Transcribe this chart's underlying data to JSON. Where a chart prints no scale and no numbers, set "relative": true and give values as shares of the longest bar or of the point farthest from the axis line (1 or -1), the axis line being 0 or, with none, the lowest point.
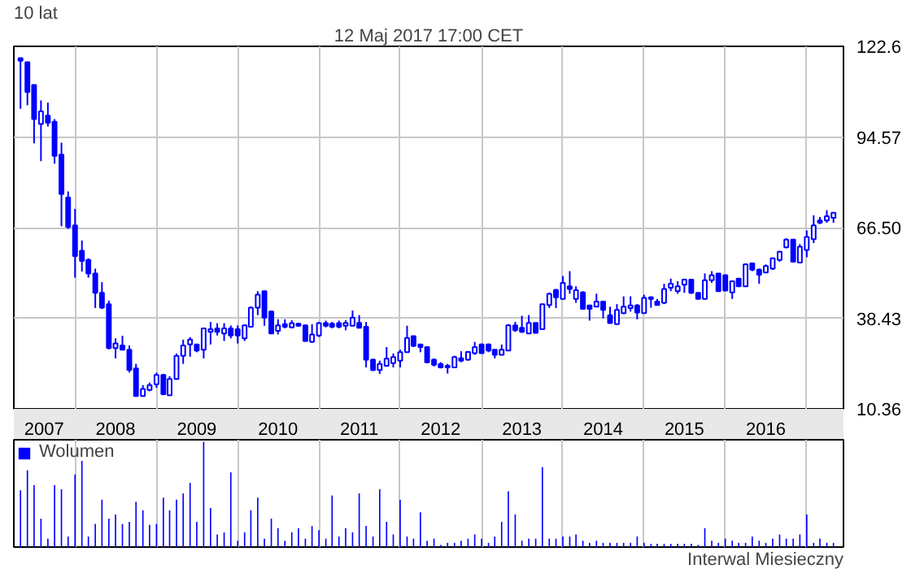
{
  "chart_data": [
    {
      "type": "candlestick",
      "title": "10 lat",
      "subtitle": "12 Maj 2017 17:00 CET",
      "color": "#0000ff",
      "x": [
        "2007-05",
        "2007-06",
        "2007-07",
        "2007-08",
        "2007-09",
        "2007-10",
        "2007-11",
        "2007-12",
        "2008-01",
        "2008-02",
        "2008-03",
        "2008-04",
        "2008-05",
        "2008-06",
        "2008-07",
        "2008-08",
        "2008-09",
        "2008-10",
        "2008-11",
        "2008-12",
        "2009-01",
        "2009-02",
        "2009-03",
        "2009-04",
        "2009-05",
        "2009-06",
        "2009-07",
        "2009-08",
        "2009-09",
        "2009-10",
        "2009-11",
        "2009-12",
        "2010-01",
        "2010-02",
        "2010-03",
        "2010-04",
        "2010-05",
        "2010-06",
        "2010-07",
        "2010-08",
        "2010-09",
        "2010-10",
        "2010-11",
        "2010-12",
        "2011-01",
        "2011-02",
        "2011-03",
        "2011-04",
        "2011-05",
        "2011-06",
        "2011-07",
        "2011-08",
        "2011-09",
        "2011-10",
        "2011-11",
        "2011-12",
        "2012-01",
        "2012-02",
        "2012-03",
        "2012-04",
        "2012-05",
        "2012-06",
        "2012-07",
        "2012-08",
        "2012-09",
        "2012-10",
        "2012-11",
        "2012-12",
        "2013-01",
        "2013-02",
        "2013-03",
        "2013-04",
        "2013-05",
        "2013-06",
        "2013-07",
        "2013-08",
        "2013-09",
        "2013-10",
        "2013-11",
        "2013-12",
        "2014-01",
        "2014-02",
        "2014-03",
        "2014-04",
        "2014-05",
        "2014-06",
        "2014-07",
        "2014-08",
        "2014-09",
        "2014-10",
        "2014-11",
        "2014-12",
        "2015-01",
        "2015-02",
        "2015-03",
        "2015-04",
        "2015-05",
        "2015-06",
        "2015-07",
        "2015-08",
        "2015-09",
        "2015-10",
        "2015-11",
        "2015-12",
        "2016-01",
        "2016-02",
        "2016-03",
        "2016-04",
        "2016-05",
        "2016-06",
        "2016-07",
        "2016-08",
        "2016-09",
        "2016-10",
        "2016-11",
        "2016-12",
        "2017-01",
        "2017-02",
        "2017-03",
        "2017-04",
        "2017-05"
      ],
      "ohlc": [
        [
          119.0,
          119.0,
          103.3,
          118.2
        ],
        [
          117.7,
          117.7,
          104.4,
          108.5
        ],
        [
          110.7,
          110.7,
          92.6,
          100.1
        ],
        [
          98.6,
          105.9,
          87.1,
          102.5
        ],
        [
          101.2,
          105.2,
          97.8,
          99.0
        ],
        [
          99.3,
          100.1,
          86.3,
          88.7
        ],
        [
          89.1,
          92.8,
          66.9,
          76.9
        ],
        [
          75.8,
          77.7,
          66.1,
          66.7
        ],
        [
          67.2,
          72.3,
          51.0,
          57.7
        ],
        [
          59.3,
          62.5,
          52.9,
          56.2
        ],
        [
          56.5,
          57.0,
          51.0,
          52.3
        ],
        [
          52.3,
          53.8,
          41.6,
          46.3
        ],
        [
          46.3,
          49.6,
          41.3,
          41.7
        ],
        [
          42.8,
          43.9,
          28.8,
          29.2
        ],
        [
          29.2,
          32.2,
          26.0,
          30.6
        ],
        [
          30.0,
          33.0,
          28.5,
          28.7
        ],
        [
          28.7,
          30.0,
          21.6,
          22.4
        ],
        [
          22.9,
          24.3,
          14.1,
          14.3
        ],
        [
          14.3,
          17.7,
          14.1,
          16.5
        ],
        [
          16.2,
          18.5,
          15.8,
          17.7
        ],
        [
          18.0,
          21.6,
          16.9,
          20.9
        ],
        [
          20.9,
          21.2,
          14.6,
          14.9
        ],
        [
          14.6,
          20.5,
          14.4,
          19.6
        ],
        [
          19.6,
          27.5,
          19.4,
          26.8
        ],
        [
          26.8,
          31.8,
          24.3,
          30.0
        ],
        [
          30.3,
          32.6,
          26.5,
          31.8
        ],
        [
          30.3,
          30.5,
          27.9,
          28.4
        ],
        [
          28.7,
          35.5,
          26.0,
          35.3
        ],
        [
          34.2,
          37.3,
          30.3,
          35.0
        ],
        [
          35.3,
          36.9,
          33.1,
          34.2
        ],
        [
          33.7,
          36.9,
          31.4,
          35.3
        ],
        [
          35.3,
          36.2,
          32.2,
          33.1
        ],
        [
          35.0,
          36.2,
          30.6,
          33.1
        ],
        [
          32.2,
          36.4,
          31.4,
          36.2
        ],
        [
          35.8,
          42.0,
          35.6,
          41.7
        ],
        [
          41.7,
          46.8,
          39.4,
          45.7
        ],
        [
          46.8,
          47.0,
          36.1,
          38.6
        ],
        [
          40.5,
          40.8,
          33.5,
          33.7
        ],
        [
          34.5,
          38.1,
          33.4,
          36.2
        ],
        [
          36.6,
          38.1,
          35.3,
          35.8
        ],
        [
          35.6,
          37.8,
          35.3,
          36.9
        ],
        [
          36.7,
          37.0,
          35.8,
          36.1
        ],
        [
          36.2,
          36.4,
          31.2,
          31.4
        ],
        [
          31.1,
          36.6,
          30.8,
          33.4
        ],
        [
          33.1,
          37.3,
          32.6,
          36.9
        ],
        [
          36.9,
          37.7,
          35.6,
          36.1
        ],
        [
          36.7,
          37.3,
          35.3,
          35.8
        ],
        [
          36.9,
          37.7,
          35.3,
          35.8
        ],
        [
          36.1,
          37.8,
          34.7,
          37.0
        ],
        [
          36.1,
          40.8,
          36.1,
          38.6
        ],
        [
          37.0,
          39.4,
          35.5,
          35.5
        ],
        [
          35.8,
          37.3,
          23.2,
          25.6
        ],
        [
          25.6,
          25.9,
          22.1,
          22.4
        ],
        [
          22.4,
          25.3,
          21.2,
          24.3
        ],
        [
          23.7,
          29.5,
          23.7,
          25.9
        ],
        [
          24.5,
          27.5,
          23.2,
          26.4
        ],
        [
          25.3,
          28.7,
          23.2,
          27.9
        ],
        [
          27.9,
          36.1,
          27.9,
          32.3
        ],
        [
          32.9,
          32.9,
          29.5,
          29.9
        ],
        [
          30.3,
          30.3,
          27.9,
          29.5
        ],
        [
          29.5,
          29.5,
          24.5,
          24.8
        ],
        [
          25.6,
          26.0,
          23.5,
          24.0
        ],
        [
          24.3,
          24.8,
          22.9,
          23.2
        ],
        [
          23.2,
          24.3,
          21.3,
          23.7
        ],
        [
          23.2,
          26.8,
          23.2,
          26.4
        ],
        [
          26.0,
          28.2,
          24.8,
          25.3
        ],
        [
          25.6,
          28.2,
          25.3,
          28.0
        ],
        [
          27.6,
          31.1,
          27.1,
          29.5
        ],
        [
          30.3,
          30.6,
          27.5,
          27.6
        ],
        [
          30.3,
          30.6,
          27.9,
          28.4
        ],
        [
          28.7,
          28.7,
          26.0,
          27.1
        ],
        [
          27.1,
          30.3,
          27.1,
          28.7
        ],
        [
          28.4,
          36.6,
          28.4,
          36.2
        ],
        [
          36.2,
          37.3,
          34.2,
          34.7
        ],
        [
          35.5,
          39.2,
          33.9,
          34.2
        ],
        [
          33.7,
          39.4,
          33.7,
          37.0
        ],
        [
          37.0,
          37.0,
          33.7,
          33.9
        ],
        [
          35.0,
          42.8,
          35.0,
          42.8
        ],
        [
          42.5,
          46.4,
          41.6,
          46.0
        ],
        [
          47.2,
          47.5,
          41.6,
          44.9
        ],
        [
          44.4,
          51.5,
          44.4,
          49.4
        ],
        [
          48.3,
          53.0,
          46.0,
          47.5
        ],
        [
          44.4,
          48.3,
          43.2,
          47.1
        ],
        [
          46.4,
          46.8,
          41.3,
          41.3
        ],
        [
          42.4,
          42.4,
          37.7,
          41.3
        ],
        [
          42.0,
          46.0,
          42.0,
          43.6
        ],
        [
          43.6,
          43.6,
          38.4,
          41.0
        ],
        [
          39.4,
          42.0,
          36.9,
          36.9
        ],
        [
          36.6,
          42.8,
          36.6,
          41.0
        ],
        [
          40.0,
          45.2,
          39.7,
          42.0
        ],
        [
          41.6,
          45.2,
          40.5,
          42.4
        ],
        [
          42.4,
          42.8,
          38.1,
          40.2
        ],
        [
          40.0,
          45.7,
          40.0,
          44.7
        ],
        [
          44.9,
          45.2,
          41.7,
          44.4
        ],
        [
          43.6,
          44.4,
          42.5,
          42.5
        ],
        [
          43.2,
          49.1,
          42.8,
          47.5
        ],
        [
          47.9,
          50.7,
          46.8,
          49.1
        ],
        [
          46.8,
          49.9,
          46.0,
          48.3
        ],
        [
          48.8,
          50.7,
          46.3,
          50.4
        ],
        [
          50.4,
          50.4,
          46.0,
          46.3
        ],
        [
          46.3,
          46.3,
          44.4,
          44.4
        ],
        [
          44.4,
          52.3,
          44.4,
          50.2
        ],
        [
          50.2,
          53.0,
          49.4,
          51.8
        ],
        [
          52.3,
          52.3,
          46.8,
          46.8
        ],
        [
          51.8,
          51.8,
          46.8,
          47.0
        ],
        [
          46.4,
          49.9,
          44.4,
          49.9
        ],
        [
          50.7,
          50.7,
          48.3,
          48.3
        ],
        [
          48.3,
          55.4,
          48.3,
          55.1
        ],
        [
          55.4,
          55.7,
          53.0,
          53.5
        ],
        [
          53.5,
          53.8,
          49.1,
          51.9
        ],
        [
          52.6,
          55.1,
          52.6,
          54.6
        ],
        [
          53.8,
          57.0,
          53.4,
          57.0
        ],
        [
          56.5,
          59.3,
          55.9,
          59.0
        ],
        [
          60.4,
          63.2,
          60.1,
          62.8
        ],
        [
          62.8,
          62.8,
          55.9,
          55.9
        ],
        [
          55.7,
          61.4,
          55.7,
          60.6
        ],
        [
          59.6,
          65.6,
          57.3,
          63.6
        ],
        [
          62.9,
          70.3,
          61.7,
          67.2
        ],
        [
          68.7,
          69.8,
          67.6,
          68.0
        ],
        [
          68.7,
          71.9,
          68.0,
          70.0
        ],
        [
          69.5,
          71.1,
          68.0,
          71.1
        ]
      ],
      "xlim": [
        "2007-04-01",
        "2017-06-15"
      ],
      "xticks": [
        {
          "value": "2007-08-15",
          "label": "2007"
        },
        {
          "value": "2008-01-01",
          "label": null
        },
        {
          "value": "2008-07-01",
          "label": "2008"
        },
        {
          "value": "2009-01-01",
          "label": null
        },
        {
          "value": "2009-07-01",
          "label": "2009"
        },
        {
          "value": "2010-01-01",
          "label": null
        },
        {
          "value": "2010-07-01",
          "label": "2010"
        },
        {
          "value": "2011-01-01",
          "label": null
        },
        {
          "value": "2011-07-01",
          "label": "2011"
        },
        {
          "value": "2012-01-01",
          "label": null
        },
        {
          "value": "2012-07-01",
          "label": "2012"
        },
        {
          "value": "2013-01-01",
          "label": null
        },
        {
          "value": "2013-07-01",
          "label": "2013"
        },
        {
          "value": "2014-01-01",
          "label": null
        },
        {
          "value": "2014-07-01",
          "label": "2014"
        },
        {
          "value": "2015-01-01",
          "label": null
        },
        {
          "value": "2015-07-01",
          "label": "2015"
        },
        {
          "value": "2016-01-01",
          "label": null
        },
        {
          "value": "2016-07-01",
          "label": "2016"
        },
        {
          "value": "2017-01-01",
          "label": null
        }
      ],
      "ylim": [
        10.36,
        122.64
      ],
      "yticks": [
        10.36,
        38.43,
        {
          "value": 66.5,
          "label": "66.50"
        },
        94.57,
        {
          "value": 122.64,
          "label": "122.6"
        }
      ],
      "grid": true
    },
    {
      "type": "bar",
      "relative": true,
      "tick_labels": false,
      "grid": "x",
      "legend": "top left",
      "annotations": [
        "Interwal Miesieczny"
      ],
      "xlim": [
        "2007-04-01",
        "2017-06-15"
      ],
      "xticks": [
        {
          "value": "2008-01-01",
          "label": null
        },
        {
          "value": "2009-01-01",
          "label": null
        },
        {
          "value": "2010-01-01",
          "label": null
        },
        {
          "value": "2011-01-01",
          "label": null
        },
        {
          "value": "2012-01-01",
          "label": null
        },
        {
          "value": "2013-01-01",
          "label": null
        },
        {
          "value": "2014-01-01",
          "label": null
        },
        {
          "value": "2015-01-01",
          "label": null
        },
        {
          "value": "2016-01-01",
          "label": null
        },
        {
          "value": "2017-01-01",
          "label": null
        }
      ],
      "x": [
        "2007-05",
        "2007-06",
        "2007-07",
        "2007-08",
        "2007-09",
        "2007-10",
        "2007-11",
        "2007-12",
        "2008-01",
        "2008-02",
        "2008-03",
        "2008-04",
        "2008-05",
        "2008-06",
        "2008-07",
        "2008-08",
        "2008-09",
        "2008-10",
        "2008-11",
        "2008-12",
        "2009-01",
        "2009-02",
        "2009-03",
        "2009-04",
        "2009-05",
        "2009-06",
        "2009-07",
        "2009-08",
        "2009-09",
        "2009-10",
        "2009-11",
        "2009-12",
        "2010-01",
        "2010-02",
        "2010-03",
        "2010-04",
        "2010-05",
        "2010-06",
        "2010-07",
        "2010-08",
        "2010-09",
        "2010-10",
        "2010-11",
        "2010-12",
        "2011-01",
        "2011-02",
        "2011-03",
        "2011-04",
        "2011-05",
        "2011-06",
        "2011-07",
        "2011-08",
        "2011-09",
        "2011-10",
        "2011-11",
        "2011-12",
        "2012-01",
        "2012-02",
        "2012-03",
        "2012-04",
        "2012-05",
        "2012-06",
        "2012-07",
        "2012-08",
        "2012-09",
        "2012-10",
        "2012-11",
        "2012-12",
        "2013-01",
        "2013-02",
        "2013-03",
        "2013-04",
        "2013-05",
        "2013-06",
        "2013-07",
        "2013-08",
        "2013-09",
        "2013-10",
        "2013-11",
        "2013-12",
        "2014-01",
        "2014-02",
        "2014-03",
        "2014-04",
        "2014-05",
        "2014-06",
        "2014-07",
        "2014-08",
        "2014-09",
        "2014-10",
        "2014-11",
        "2014-12",
        "2015-01",
        "2015-02",
        "2015-03",
        "2015-04",
        "2015-05",
        "2015-06",
        "2015-07",
        "2015-08",
        "2015-09",
        "2015-10",
        "2015-11",
        "2015-12",
        "2016-01",
        "2016-02",
        "2016-03",
        "2016-04",
        "2016-05",
        "2016-06",
        "2016-07",
        "2016-08",
        "2016-09",
        "2016-10",
        "2016-11",
        "2016-12",
        "2017-01",
        "2017-02",
        "2017-03",
        "2017-04",
        "2017-05"
      ],
      "series": [
        {
          "name": "Wolumen",
          "color": "#0000ff",
          "values": [
            0.54,
            0.73,
            0.59,
            0.27,
            0.08,
            0.59,
            0.55,
            0.1,
            0.69,
            0.82,
            0.1,
            0.22,
            0.45,
            0.27,
            0.31,
            0.22,
            0.24,
            0.43,
            0.35,
            0.21,
            0.22,
            0.47,
            0.35,
            0.45,
            0.51,
            0.61,
            0.24,
            1,
            0.37,
            0.12,
            0.14,
            0.71,
            0.06,
            0.14,
            0.35,
            0.47,
            0.08,
            0.27,
            0.18,
            0.06,
            0.14,
            0.18,
            0.08,
            0.2,
            0.16,
            0.08,
            0.49,
            0.1,
            0.18,
            0.14,
            0.51,
            0.2,
            0.1,
            0.55,
            0.24,
            0.12,
            0.45,
            0.1,
            0.08,
            0.33,
            0.06,
            0.08,
            0.02,
            0.04,
            0.04,
            0.06,
            0.08,
            0.12,
            0.08,
            0.04,
            0.1,
            0.24,
            0.53,
            0.31,
            0.06,
            0.08,
            0.08,
            0.76,
            0.08,
            0.08,
            0.1,
            0.1,
            0.12,
            0.06,
            0.04,
            0.06,
            0.04,
            0.04,
            0.04,
            0.04,
            0.04,
            0.1,
            0.04,
            0.03,
            0.03,
            0.03,
            0.03,
            0.03,
            0.03,
            0.03,
            0.02,
            0.18,
            0.06,
            0.04,
            0.08,
            0.06,
            0.04,
            0.04,
            0.1,
            0.06,
            0.04,
            0.08,
            0.12,
            0.08,
            0.08,
            0.12,
            0.31,
            0.04,
            0.08,
            0.04,
            0.04
          ]
        }
      ]
    }
  ]
}
